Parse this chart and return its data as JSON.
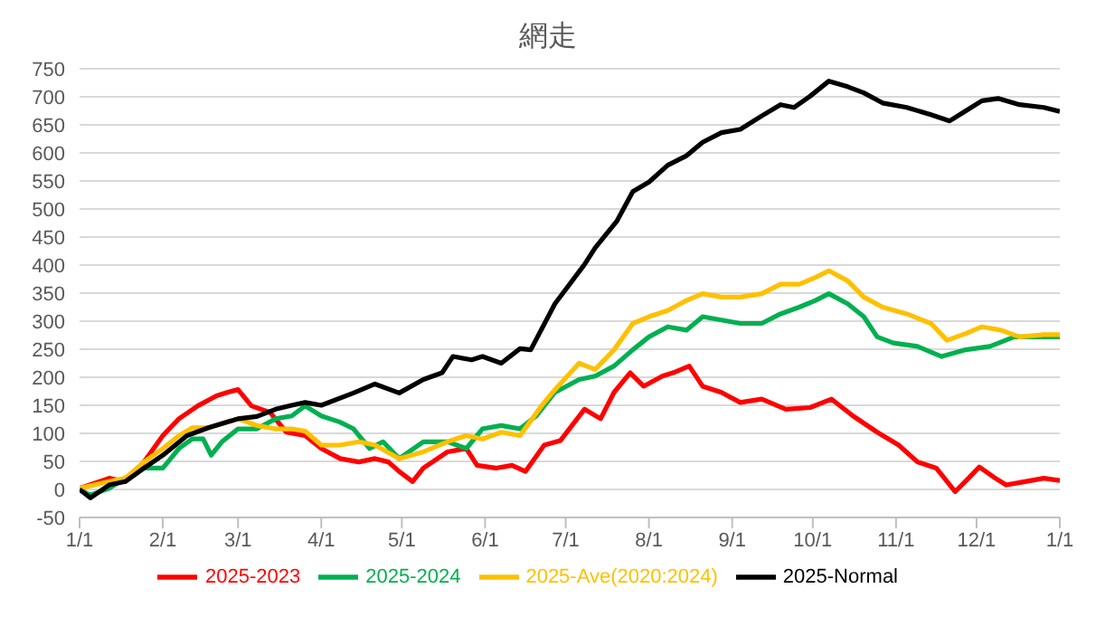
{
  "chart_data": {
    "type": "line",
    "title": "網走",
    "xlim": [
      "2025-01-01",
      "2026-01-01"
    ],
    "xticks": [
      {
        "value": "2025-01-01",
        "label": "1/1"
      },
      {
        "value": "2025-02-01",
        "label": "2/1"
      },
      {
        "value": "2025-03-01",
        "label": "3/1"
      },
      {
        "value": "2025-04-01",
        "label": "4/1"
      },
      {
        "value": "2025-05-01",
        "label": "5/1"
      },
      {
        "value": "2025-06-01",
        "label": "6/1"
      },
      {
        "value": "2025-07-01",
        "label": "7/1"
      },
      {
        "value": "2025-08-01",
        "label": "8/1"
      },
      {
        "value": "2025-09-01",
        "label": "9/1"
      },
      {
        "value": "2025-10-01",
        "label": "10/1"
      },
      {
        "value": "2025-11-01",
        "label": "11/1"
      },
      {
        "value": "2025-12-01",
        "label": "12/1"
      },
      {
        "value": "2026-01-01",
        "label": "1/1"
      }
    ],
    "ylim": [
      -50,
      750
    ],
    "yticks": [
      -50,
      0,
      50,
      100,
      150,
      200,
      250,
      300,
      350,
      400,
      450,
      500,
      550,
      600,
      650,
      700,
      750
    ],
    "grid": "y",
    "legend": "bottom",
    "marker": "none",
    "line_style": "solid",
    "series": [
      {
        "name": "2025-2023",
        "color": "#ff0000",
        "x": [
          "2025-01-01",
          "2025-01-12",
          "2025-01-18",
          "2025-01-25",
          "2025-02-01",
          "2025-02-07",
          "2025-02-14",
          "2025-02-21",
          "2025-02-25",
          "2025-03-01",
          "2025-03-06",
          "2025-03-13",
          "2025-03-19",
          "2025-03-26",
          "2025-04-01",
          "2025-04-08",
          "2025-04-15",
          "2025-04-21",
          "2025-04-26",
          "2025-04-30",
          "2025-05-05",
          "2025-05-09",
          "2025-05-18",
          "2025-05-25",
          "2025-05-29",
          "2025-06-05",
          "2025-06-11",
          "2025-06-16",
          "2025-06-23",
          "2025-06-29",
          "2025-07-08",
          "2025-07-14",
          "2025-07-19",
          "2025-07-25",
          "2025-07-30",
          "2025-08-06",
          "2025-08-10",
          "2025-08-16",
          "2025-08-21",
          "2025-08-28",
          "2025-09-04",
          "2025-09-12",
          "2025-09-21",
          "2025-09-30",
          "2025-10-08",
          "2025-10-16",
          "2025-10-25",
          "2025-11-02",
          "2025-11-09",
          "2025-11-16",
          "2025-11-23",
          "2025-11-28",
          "2025-12-02",
          "2025-12-08",
          "2025-12-12",
          "2025-12-19",
          "2025-12-26",
          "2026-01-01"
        ],
        "values": [
          2,
          20,
          14,
          49,
          96,
          126,
          149,
          167,
          173,
          178,
          149,
          137,
          102,
          96,
          73,
          55,
          49,
          55,
          49,
          32,
          14,
          38,
          67,
          73,
          43,
          38,
          43,
          32,
          79,
          87,
          143,
          126,
          173,
          208,
          184,
          202,
          208,
          220,
          184,
          173,
          155,
          161,
          143,
          146,
          161,
          131,
          102,
          79,
          49,
          38,
          -4,
          20,
          40,
          20,
          8,
          14,
          20,
          16
        ]
      },
      {
        "name": "2025-2024",
        "color": "#00b050",
        "x": [
          "2025-01-01",
          "2025-01-05",
          "2025-01-12",
          "2025-01-18",
          "2025-01-25",
          "2025-02-01",
          "2025-02-07",
          "2025-02-12",
          "2025-02-16",
          "2025-02-19",
          "2025-02-23",
          "2025-03-01",
          "2025-03-08",
          "2025-03-15",
          "2025-03-21",
          "2025-03-26",
          "2025-04-01",
          "2025-04-08",
          "2025-04-13",
          "2025-04-19",
          "2025-04-24",
          "2025-04-30",
          "2025-05-09",
          "2025-05-18",
          "2025-05-25",
          "2025-05-31",
          "2025-06-07",
          "2025-06-14",
          "2025-06-20",
          "2025-06-27",
          "2025-07-06",
          "2025-07-12",
          "2025-07-19",
          "2025-07-26",
          "2025-08-01",
          "2025-08-08",
          "2025-08-15",
          "2025-08-21",
          "2025-08-28",
          "2025-09-04",
          "2025-09-12",
          "2025-09-19",
          "2025-09-26",
          "2025-10-02",
          "2025-10-07",
          "2025-10-14",
          "2025-10-20",
          "2025-10-25",
          "2025-10-31",
          "2025-11-09",
          "2025-11-18",
          "2025-11-27",
          "2025-12-06",
          "2025-12-15",
          "2025-12-23",
          "2026-01-01"
        ],
        "values": [
          0,
          -10,
          2,
          20,
          38,
          38,
          73,
          90,
          90,
          61,
          85,
          108,
          108,
          126,
          131,
          149,
          131,
          120,
          108,
          73,
          85,
          55,
          85,
          85,
          73,
          108,
          114,
          108,
          131,
          173,
          196,
          202,
          220,
          249,
          272,
          290,
          284,
          308,
          302,
          296,
          296,
          313,
          325,
          337,
          349,
          331,
          308,
          272,
          261,
          255,
          237,
          249,
          255,
          272,
          272,
          272
        ]
      },
      {
        "name": "2025-Ave(2020:2024)",
        "color": "#ffc000",
        "x": [
          "2025-01-01",
          "2025-01-12",
          "2025-01-18",
          "2025-01-25",
          "2025-02-01",
          "2025-02-07",
          "2025-02-12",
          "2025-02-18",
          "2025-02-25",
          "2025-03-01",
          "2025-03-08",
          "2025-03-15",
          "2025-03-21",
          "2025-03-26",
          "2025-04-01",
          "2025-04-08",
          "2025-04-15",
          "2025-04-21",
          "2025-04-30",
          "2025-05-09",
          "2025-05-18",
          "2025-05-25",
          "2025-05-31",
          "2025-06-07",
          "2025-06-14",
          "2025-06-22",
          "2025-06-27",
          "2025-07-06",
          "2025-07-12",
          "2025-07-19",
          "2025-07-26",
          "2025-08-01",
          "2025-08-08",
          "2025-08-15",
          "2025-08-21",
          "2025-08-28",
          "2025-09-04",
          "2025-09-12",
          "2025-09-19",
          "2025-09-26",
          "2025-10-02",
          "2025-10-07",
          "2025-10-14",
          "2025-10-20",
          "2025-10-27",
          "2025-11-05",
          "2025-11-14",
          "2025-11-20",
          "2025-11-27",
          "2025-12-03",
          "2025-12-10",
          "2025-12-17",
          "2025-12-26",
          "2026-01-01"
        ],
        "values": [
          2,
          14,
          20,
          49,
          73,
          96,
          110,
          110,
          120,
          126,
          114,
          108,
          108,
          104,
          79,
          79,
          85,
          79,
          55,
          67,
          85,
          96,
          90,
          102,
          96,
          149,
          178,
          225,
          214,
          249,
          296,
          308,
          319,
          337,
          349,
          343,
          343,
          349,
          366,
          366,
          378,
          390,
          372,
          343,
          325,
          313,
          296,
          266,
          278,
          290,
          284,
          272,
          276,
          276
        ]
      },
      {
        "name": "2025-Normal",
        "color": "#000000",
        "x": [
          "2025-01-01",
          "2025-01-05",
          "2025-01-12",
          "2025-01-18",
          "2025-01-25",
          "2025-02-01",
          "2025-02-10",
          "2025-02-18",
          "2025-03-01",
          "2025-03-08",
          "2025-03-15",
          "2025-03-21",
          "2025-03-26",
          "2025-04-01",
          "2025-04-13",
          "2025-04-21",
          "2025-04-30",
          "2025-05-09",
          "2025-05-16",
          "2025-05-20",
          "2025-05-27",
          "2025-05-31",
          "2025-06-07",
          "2025-06-14",
          "2025-06-18",
          "2025-06-27",
          "2025-07-08",
          "2025-07-12",
          "2025-07-20",
          "2025-07-26",
          "2025-08-01",
          "2025-08-08",
          "2025-08-15",
          "2025-08-21",
          "2025-08-28",
          "2025-09-04",
          "2025-09-12",
          "2025-09-19",
          "2025-09-24",
          "2025-09-30",
          "2025-10-07",
          "2025-10-14",
          "2025-10-20",
          "2025-10-27",
          "2025-11-05",
          "2025-11-14",
          "2025-11-21",
          "2025-11-27",
          "2025-12-03",
          "2025-12-09",
          "2025-12-17",
          "2025-12-26",
          "2026-01-01"
        ],
        "values": [
          0,
          -15,
          8,
          14,
          38,
          61,
          96,
          110,
          126,
          130,
          143,
          150,
          155,
          150,
          172,
          188,
          172,
          196,
          208,
          237,
          231,
          237,
          225,
          251,
          249,
          331,
          401,
          431,
          478,
          531,
          548,
          578,
          595,
          619,
          636,
          642,
          666,
          686,
          681,
          701,
          728,
          718,
          707,
          689,
          681,
          668,
          657,
          675,
          693,
          697,
          686,
          681,
          674
        ]
      }
    ]
  }
}
